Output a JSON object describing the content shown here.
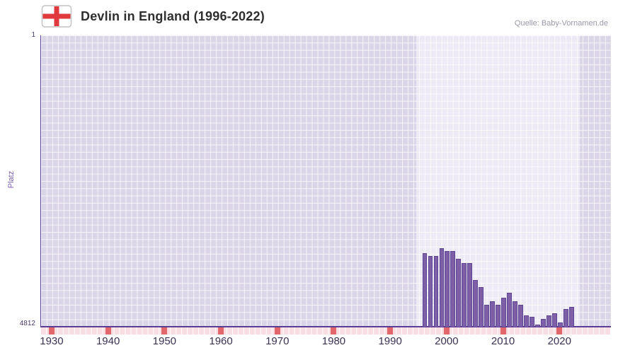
{
  "header": {
    "title": "Devlin in England (1996-2022)",
    "source": "Quelle: Baby-Vornamen.de"
  },
  "chart_data": {
    "type": "bar",
    "title": "Devlin in England (1996-2022)",
    "xlabel": "",
    "ylabel": "Platz",
    "y_axis": {
      "min": 1,
      "max": 4812,
      "inverted": true,
      "top_label": "1",
      "bottom_label": "4812"
    },
    "x_axis": {
      "range": [
        1928,
        2029
      ],
      "ticks": [
        1930,
        1940,
        1950,
        1960,
        1970,
        1980,
        1990,
        2000,
        2010,
        2020
      ]
    },
    "highlight_region": {
      "from": 1994.5,
      "to": 2023.5
    },
    "grid": true,
    "legend": "none",
    "categories": [
      1996,
      1997,
      1998,
      1999,
      2000,
      2001,
      2002,
      2003,
      2004,
      2005,
      2006,
      2007,
      2008,
      2009,
      2010,
      2011,
      2012,
      2013,
      2014,
      2015,
      2016,
      2017,
      2018,
      2019,
      2020,
      2021,
      2022
    ],
    "values": [
      3600,
      3640,
      3640,
      3520,
      3560,
      3560,
      3690,
      3760,
      3760,
      4040,
      4160,
      4450,
      4390,
      4450,
      4330,
      4250,
      4390,
      4450,
      4630,
      4650,
      4780,
      4680,
      4630,
      4590,
      4740,
      4520,
      4490
    ],
    "colors": {
      "bar": "#7e60a8",
      "bar_border": "#5e4593",
      "plot_bg": "#dbd5e8",
      "highlight_bg": "#edeaf5",
      "axis": "#5c3d96",
      "tick_red": "#e2676d",
      "tick_pink": "#f8dee2",
      "label": "#3a3153",
      "ylabel": "#7b5fae",
      "source": "#9a98a8",
      "title": "#2e2e2e"
    }
  }
}
